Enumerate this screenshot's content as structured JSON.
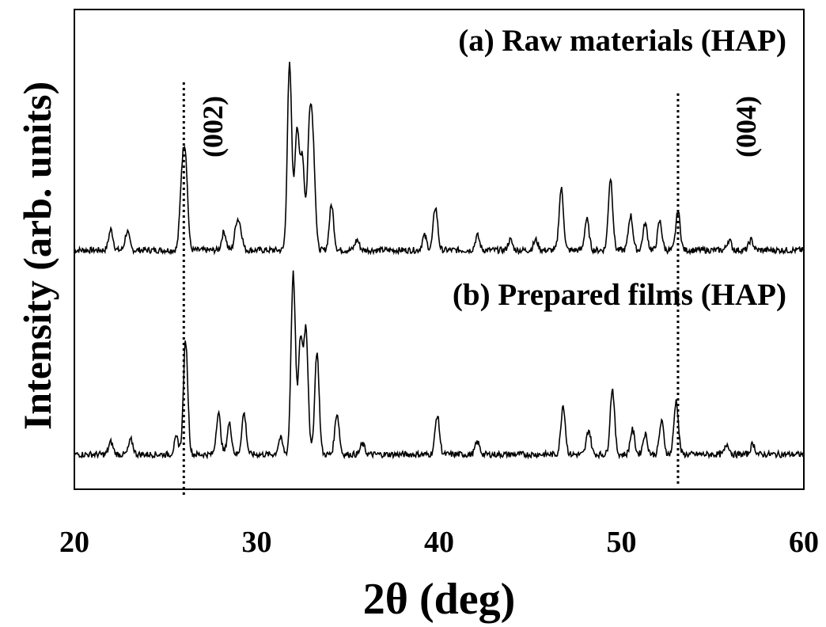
{
  "chart_data": {
    "type": "line",
    "title": "",
    "xlabel": "2θ (deg)",
    "ylabel": "Intensity (arb. units)",
    "xlim": [
      20,
      60
    ],
    "xticks": [
      "20",
      "30",
      "40",
      "50",
      "60"
    ],
    "yticks": [],
    "grid": false,
    "legend": "none",
    "reference_lines": [
      {
        "label": "(002)",
        "x": 26.0
      },
      {
        "label": "(004)",
        "x": 53.1
      }
    ],
    "series": [
      {
        "name": "(a) Raw materials (HAP)",
        "baseline": 0,
        "noise_level": 1.5,
        "peaks": [
          {
            "x": 22.0,
            "y": 10
          },
          {
            "x": 22.9,
            "y": 9
          },
          {
            "x": 25.9,
            "y": 32
          },
          {
            "x": 26.1,
            "y": 40
          },
          {
            "x": 28.2,
            "y": 9
          },
          {
            "x": 28.9,
            "y": 12
          },
          {
            "x": 29.1,
            "y": 9
          },
          {
            "x": 31.8,
            "y": 90
          },
          {
            "x": 32.2,
            "y": 58
          },
          {
            "x": 32.5,
            "y": 45
          },
          {
            "x": 32.9,
            "y": 58
          },
          {
            "x": 33.1,
            "y": 42
          },
          {
            "x": 34.1,
            "y": 22
          },
          {
            "x": 35.5,
            "y": 5
          },
          {
            "x": 39.2,
            "y": 7
          },
          {
            "x": 39.8,
            "y": 21
          },
          {
            "x": 42.1,
            "y": 7
          },
          {
            "x": 43.9,
            "y": 5
          },
          {
            "x": 45.3,
            "y": 5
          },
          {
            "x": 46.7,
            "y": 30
          },
          {
            "x": 48.1,
            "y": 15
          },
          {
            "x": 49.4,
            "y": 35
          },
          {
            "x": 50.5,
            "y": 17
          },
          {
            "x": 51.3,
            "y": 13
          },
          {
            "x": 52.1,
            "y": 14
          },
          {
            "x": 53.1,
            "y": 19
          },
          {
            "x": 55.9,
            "y": 5
          },
          {
            "x": 57.1,
            "y": 5
          }
        ]
      },
      {
        "name": "(b) Prepared films (HAP)",
        "baseline": 0,
        "noise_level": 1.5,
        "peaks": [
          {
            "x": 22.0,
            "y": 6
          },
          {
            "x": 23.1,
            "y": 7
          },
          {
            "x": 25.6,
            "y": 8
          },
          {
            "x": 26.1,
            "y": 55
          },
          {
            "x": 27.9,
            "y": 20
          },
          {
            "x": 28.5,
            "y": 15
          },
          {
            "x": 29.3,
            "y": 20
          },
          {
            "x": 31.3,
            "y": 8
          },
          {
            "x": 32.0,
            "y": 88
          },
          {
            "x": 32.4,
            "y": 55
          },
          {
            "x": 32.7,
            "y": 60
          },
          {
            "x": 33.3,
            "y": 50
          },
          {
            "x": 34.4,
            "y": 20
          },
          {
            "x": 35.8,
            "y": 5
          },
          {
            "x": 39.9,
            "y": 19
          },
          {
            "x": 42.1,
            "y": 6
          },
          {
            "x": 46.8,
            "y": 24
          },
          {
            "x": 48.2,
            "y": 12
          },
          {
            "x": 49.5,
            "y": 32
          },
          {
            "x": 50.6,
            "y": 12
          },
          {
            "x": 51.3,
            "y": 10
          },
          {
            "x": 52.2,
            "y": 16
          },
          {
            "x": 53.0,
            "y": 26
          },
          {
            "x": 55.8,
            "y": 5
          },
          {
            "x": 57.2,
            "y": 5
          }
        ]
      }
    ]
  }
}
